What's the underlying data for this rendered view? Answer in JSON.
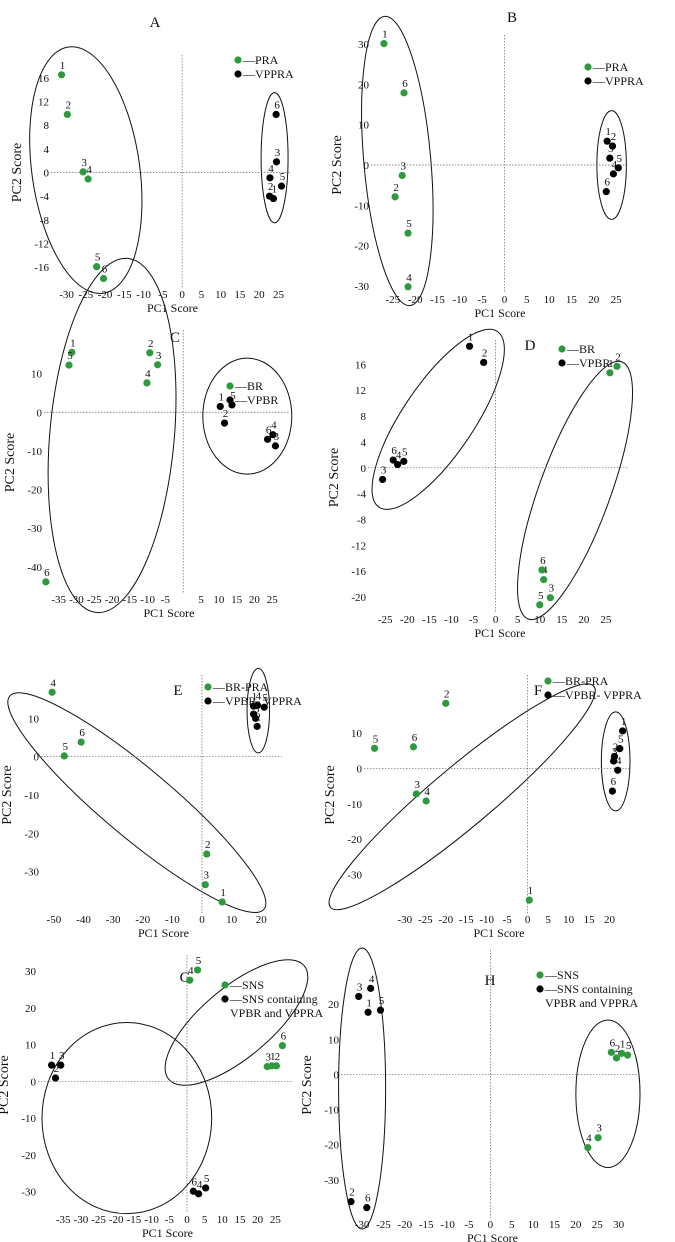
{
  "figure": {
    "series_colors": {
      "green": "#2e9a3e",
      "black": "#000000"
    }
  },
  "chart_data": [
    {
      "panel_label": "A",
      "type": "scatter",
      "xlabel": "PC1 Score",
      "ylabel": "PC2 Score",
      "xlim": [
        -33,
        28
      ],
      "ylim": [
        -19,
        19
      ],
      "xticks": [
        -30,
        -25,
        -20,
        -15,
        -10,
        -5,
        0,
        5,
        10,
        15,
        20,
        25
      ],
      "yticks": [
        -16,
        -12,
        -8,
        -4,
        0,
        4,
        8,
        12,
        16
      ],
      "legend": [
        "PRA",
        "VPPRA"
      ],
      "series": [
        {
          "name": "PRA",
          "color": "green",
          "points": [
            {
              "x": -31.3,
              "y": 16.5,
              "label": "1"
            },
            {
              "x": -29.8,
              "y": 9.8,
              "label": "2"
            },
            {
              "x": -25.7,
              "y": 0.1,
              "label": "3"
            },
            {
              "x": -24.4,
              "y": -1.1,
              "label": "4"
            },
            {
              "x": -22.2,
              "y": -15.9,
              "label": "5"
            },
            {
              "x": -20.4,
              "y": -17.9,
              "label": "6"
            }
          ]
        },
        {
          "name": "VPPRA",
          "color": "black",
          "points": [
            {
              "x": 23.7,
              "y": -4.4,
              "label": "1"
            },
            {
              "x": 22.7,
              "y": -4.0,
              "label": "2"
            },
            {
              "x": 24.5,
              "y": 1.8,
              "label": "3"
            },
            {
              "x": 22.8,
              "y": -0.9,
              "label": "4"
            },
            {
              "x": 25.8,
              "y": -2.3,
              "label": "5"
            },
            {
              "x": 24.4,
              "y": 9.8,
              "label": "6"
            }
          ]
        }
      ],
      "ellipses": [
        {
          "cx": -25,
          "cy": 0.4,
          "rx": 14,
          "ry": 21,
          "rot": -8
        },
        {
          "cx": 24,
          "cy": 2.5,
          "rx": 3.5,
          "ry": 11,
          "rot": 0
        }
      ]
    },
    {
      "panel_label": "B",
      "type": "scatter",
      "xlabel": "PC1 Score",
      "ylabel": "PC2 Score",
      "xlim": [
        -29,
        27
      ],
      "ylim": [
        -31,
        31
      ],
      "xticks": [
        -25,
        -20,
        -15,
        -10,
        -5,
        0,
        5,
        10,
        15,
        20,
        25
      ],
      "yticks": [
        -30,
        -20,
        -10,
        0,
        10,
        20,
        30
      ],
      "legend": [
        "PRA",
        "VPPRA"
      ],
      "series": [
        {
          "name": "PRA",
          "color": "green",
          "points": [
            {
              "x": -27.0,
              "y": 30.1,
              "label": "1"
            },
            {
              "x": -24.5,
              "y": -7.9,
              "label": "2"
            },
            {
              "x": -22.9,
              "y": -2.6,
              "label": "3"
            },
            {
              "x": -21.6,
              "y": -30.2,
              "label": "4"
            },
            {
              "x": -21.6,
              "y": -16.9,
              "label": "5"
            },
            {
              "x": -22.5,
              "y": 17.9,
              "label": "6"
            }
          ]
        },
        {
          "name": "VPPRA",
          "color": "black",
          "points": [
            {
              "x": 23.0,
              "y": 5.9,
              "label": "1"
            },
            {
              "x": 24.2,
              "y": 4.7,
              "label": "2"
            },
            {
              "x": 23.6,
              "y": 1.7,
              "label": "3"
            },
            {
              "x": 24.4,
              "y": -2.2,
              "label": "4"
            },
            {
              "x": 25.5,
              "y": -0.7,
              "label": "5"
            },
            {
              "x": 22.8,
              "y": -6.6,
              "label": "6"
            }
          ]
        }
      ],
      "ellipses": [
        {
          "cx": -24,
          "cy": 1,
          "rx": 7.5,
          "ry": 36,
          "rot": -5
        },
        {
          "cx": 24,
          "cy": 0,
          "rx": 3.3,
          "ry": 13.5,
          "rot": 0
        }
      ]
    },
    {
      "panel_label": "C",
      "type": "scatter",
      "xlabel": "PC1 Score",
      "ylabel": "PC2 Score",
      "xlim": [
        -38,
        30
      ],
      "ylim": [
        -46,
        20
      ],
      "xticks": [
        -35,
        -30,
        -25,
        -20,
        -15,
        -10,
        -5,
        5,
        10,
        15,
        20,
        25
      ],
      "yticks": [
        -40,
        -30,
        -20,
        -10,
        0,
        10
      ],
      "legend": [
        "BR",
        "VPBR"
      ],
      "series": [
        {
          "name": "BR",
          "color": "green",
          "points": [
            {
              "x": -31.3,
              "y": 15.5,
              "label": "1"
            },
            {
              "x": -9.4,
              "y": 15.4,
              "label": "2"
            },
            {
              "x": -7.2,
              "y": 12.3,
              "label": "3"
            },
            {
              "x": -10.2,
              "y": 7.6,
              "label": "4"
            },
            {
              "x": -32.1,
              "y": 12.2,
              "label": "5"
            },
            {
              "x": -38.6,
              "y": -43.9,
              "label": "6"
            }
          ]
        },
        {
          "name": "VPBR",
          "color": "black",
          "points": [
            {
              "x": 10.4,
              "y": 1.5,
              "label": "1"
            },
            {
              "x": 11.6,
              "y": -2.8,
              "label": "2"
            },
            {
              "x": 25.9,
              "y": -8.7,
              "label": "3"
            },
            {
              "x": 25.2,
              "y": -5.8,
              "label": "4"
            },
            {
              "x": 13.7,
              "y": 1.9,
              "label": "5"
            },
            {
              "x": 23.7,
              "y": -7.0,
              "label": "6"
            }
          ]
        }
      ],
      "ellipses": [
        {
          "cx": -20,
          "cy": -6,
          "rx": 17.5,
          "ry": 46,
          "rot": 5
        },
        {
          "cx": 18,
          "cy": -1,
          "rx": 12.5,
          "ry": 15,
          "rot": 0
        }
      ]
    },
    {
      "panel_label": "D",
      "type": "scatter",
      "xlabel": "PC1 Score",
      "ylabel": "PC2 Score",
      "xlim": [
        -28,
        30
      ],
      "ylim": [
        -22,
        19
      ],
      "xticks": [
        -25,
        -20,
        -15,
        -10,
        -5,
        0,
        5,
        10,
        15,
        20,
        25
      ],
      "yticks": [
        -20,
        -16,
        -12,
        -8,
        -4,
        0,
        4,
        8,
        12,
        16
      ],
      "legend": [
        "BR",
        "VPBR"
      ],
      "series": [
        {
          "name": "BR",
          "color": "green",
          "points": [
            {
              "x": 25.9,
              "y": 14.7,
              "label": "1"
            },
            {
              "x": 27.5,
              "y": 15.7,
              "label": "2"
            },
            {
              "x": 12.4,
              "y": -20.1,
              "label": "3"
            },
            {
              "x": 10.9,
              "y": -17.3,
              "label": "4"
            },
            {
              "x": 10.0,
              "y": -21.2,
              "label": "5"
            },
            {
              "x": 10.5,
              "y": -15.8,
              "label": "6"
            }
          ]
        },
        {
          "name": "VPBR",
          "color": "black",
          "points": [
            {
              "x": -5.9,
              "y": 18.8,
              "label": "1"
            },
            {
              "x": -2.7,
              "y": 16.3,
              "label": "2"
            },
            {
              "x": -25.6,
              "y": -1.8,
              "label": "3"
            },
            {
              "x": -22.2,
              "y": 0.5,
              "label": "4"
            },
            {
              "x": -20.8,
              "y": 1.0,
              "label": "5"
            },
            {
              "x": -23.2,
              "y": 1.2,
              "label": "6"
            }
          ]
        }
      ],
      "ellipses": [
        {
          "cx": -13,
          "cy": 7.5,
          "rx": 24,
          "ry": 5.5,
          "rot": -56
        },
        {
          "cx": 18,
          "cy": -3.5,
          "rx": 31,
          "ry": 5.5,
          "rot": -70
        }
      ]
    },
    {
      "panel_label": "E",
      "type": "scatter",
      "xlabel": "PC1 Score",
      "ylabel": "PC2 Score",
      "xlim": [
        -53,
        27
      ],
      "ylim": [
        -40,
        20
      ],
      "xticks": [
        -50,
        -40,
        -30,
        -20,
        -10,
        0,
        10,
        20
      ],
      "yticks": [
        -30,
        -20,
        -10,
        0,
        10
      ],
      "legend": [
        "BR-PRA",
        "VPBR- VPPRA"
      ],
      "series": [
        {
          "name": "BR-PRA",
          "color": "green",
          "points": [
            {
              "x": 6.8,
              "y": -37.9,
              "label": "1"
            },
            {
              "x": 1.6,
              "y": -25.4,
              "label": "2"
            },
            {
              "x": 1.1,
              "y": -33.4,
              "label": "3"
            },
            {
              "x": -50.6,
              "y": 16.8,
              "label": "4"
            },
            {
              "x": -46.5,
              "y": 0.2,
              "label": "5"
            },
            {
              "x": -40.8,
              "y": 3.8,
              "label": "6"
            }
          ]
        },
        {
          "name": "VPBR- VPPRA",
          "color": "black",
          "points": [
            {
              "x": 17.4,
              "y": 13.2,
              "label": "1"
            },
            {
              "x": 18.6,
              "y": 7.9,
              "label": "2"
            },
            {
              "x": 18.1,
              "y": 10.0,
              "label": "3"
            },
            {
              "x": 18.7,
              "y": 13.4,
              "label": "4"
            },
            {
              "x": 21.0,
              "y": 12.9,
              "label": "5"
            },
            {
              "x": 17.4,
              "y": 11.1,
              "label": "6"
            }
          ]
        }
      ],
      "ellipses": [
        {
          "cx": -22,
          "cy": -12,
          "rx": 56,
          "ry": 9,
          "rot": 40
        },
        {
          "cx": 19,
          "cy": 12,
          "rx": 3.8,
          "ry": 11,
          "rot": 0
        }
      ]
    },
    {
      "panel_label": "F",
      "type": "scatter",
      "xlabel": "PC1 Score",
      "ylabel": "PC2 Score",
      "xlim": [
        -39,
        25
      ],
      "ylim": [
        -40,
        25
      ],
      "xticks": [
        -30,
        -25,
        -20,
        -15,
        -10,
        -5,
        0,
        5,
        10,
        15,
        20
      ],
      "yticks": [
        -30,
        -20,
        -10,
        0,
        10
      ],
      "legend": [
        "BR-PRA",
        "VPBR- VPPRA"
      ],
      "series": [
        {
          "name": "BR-PRA",
          "color": "green",
          "points": [
            {
              "x": 0.4,
              "y": -37.2,
              "label": "1"
            },
            {
              "x": -20.0,
              "y": 18.4,
              "label": "2"
            },
            {
              "x": -27.2,
              "y": -7.2,
              "label": "3"
            },
            {
              "x": -24.8,
              "y": -9.2,
              "label": "4"
            },
            {
              "x": -37.4,
              "y": 5.7,
              "label": "5"
            },
            {
              "x": -27.9,
              "y": 6.1,
              "label": "6"
            }
          ]
        },
        {
          "name": "VPBR- VPPRA",
          "color": "black",
          "points": [
            {
              "x": 23.2,
              "y": 10.6,
              "label": "1"
            },
            {
              "x": 21.2,
              "y": 3.4,
              "label": "2"
            },
            {
              "x": 21.0,
              "y": 2.1,
              "label": "3"
            },
            {
              "x": 22.0,
              "y": -0.5,
              "label": "4"
            },
            {
              "x": 22.5,
              "y": 5.6,
              "label": "5"
            },
            {
              "x": 20.7,
              "y": -6.4,
              "label": "6"
            }
          ]
        }
      ],
      "ellipses": [
        {
          "cx": -16,
          "cy": -8,
          "rx": 42,
          "ry": 8.5,
          "rot": -40
        },
        {
          "cx": 21.5,
          "cy": 2,
          "rx": 3.5,
          "ry": 14,
          "rot": 0
        }
      ]
    },
    {
      "panel_label": "G",
      "type": "scatter",
      "xlabel": "PC1 Score",
      "ylabel": "PC2 Score",
      "xlim": [
        -41,
        30
      ],
      "ylim": [
        -35,
        33
      ],
      "xticks": [
        -35,
        -30,
        -25,
        -20,
        -15,
        -10,
        -5,
        0,
        5,
        10,
        15,
        20,
        25
      ],
      "yticks": [
        -30,
        -20,
        -10,
        0,
        10,
        20,
        30
      ],
      "legend": [
        "SNS",
        "SNS containing",
        "VPBR and VPPRA"
      ],
      "series": [
        {
          "name": "SNS",
          "color": "green",
          "points": [
            {
              "x": 24.0,
              "y": 4.2,
              "label": "1"
            },
            {
              "x": 25.3,
              "y": 4.2,
              "label": "2"
            },
            {
              "x": 22.7,
              "y": 4.0,
              "label": "3"
            },
            {
              "x": 0.8,
              "y": 27.5,
              "label": "4"
            },
            {
              "x": 3.0,
              "y": 30.3,
              "label": "5"
            },
            {
              "x": 27.0,
              "y": 9.7,
              "label": "6"
            }
          ]
        },
        {
          "name": "SNS containing VPBR and VPPRA",
          "color": "black",
          "points": [
            {
              "x": -38.3,
              "y": 4.4,
              "label": "1"
            },
            {
              "x": -37.2,
              "y": 0.9,
              "label": "2"
            },
            {
              "x": -35.7,
              "y": 4.4,
              "label": "3"
            },
            {
              "x": 3.3,
              "y": -30.6,
              "label": "4"
            },
            {
              "x": 5.3,
              "y": -29.0,
              "label": "5"
            },
            {
              "x": 1.8,
              "y": -29.9,
              "label": "6"
            }
          ]
        }
      ],
      "ellipses": [
        {
          "cx": -17,
          "cy": -10,
          "rx": 24,
          "ry": 26,
          "rot": 0
        },
        {
          "cx": 14,
          "cy": 16,
          "rx": 25,
          "ry": 9.5,
          "rot": -40
        }
      ]
    },
    {
      "panel_label": "H",
      "type": "scatter",
      "xlabel": "PC1 Score",
      "ylabel": "PC2 Score",
      "xlim": [
        -34,
        35
      ],
      "ylim": [
        -40,
        34
      ],
      "xticks": [
        -30,
        -25,
        -20,
        -15,
        -10,
        -5,
        0,
        5,
        10,
        15,
        20,
        25,
        30
      ],
      "yticks": [
        -30,
        -20,
        -10,
        0,
        10,
        20
      ],
      "legend": [
        "SNS",
        "SNS containing",
        "VPBR and VPPRA"
      ],
      "series": [
        {
          "name": "SNS",
          "color": "green",
          "points": [
            {
              "x": 30.7,
              "y": 6.0,
              "label": "1"
            },
            {
              "x": 29.5,
              "y": 4.7,
              "label": "2"
            },
            {
              "x": 25.2,
              "y": -18.0,
              "label": "3"
            },
            {
              "x": 22.8,
              "y": -20.8,
              "label": "4"
            },
            {
              "x": 32.1,
              "y": 5.5,
              "label": "5"
            },
            {
              "x": 28.3,
              "y": 6.3,
              "label": "6"
            }
          ]
        },
        {
          "name": "SNS containing VPBR and VPPRA",
          "color": "black",
          "points": [
            {
              "x": -28.6,
              "y": 17.7,
              "label": "1"
            },
            {
              "x": -32.6,
              "y": -36.2,
              "label": "2"
            },
            {
              "x": -30.8,
              "y": 22.2,
              "label": "3"
            },
            {
              "x": -28.0,
              "y": 24.5,
              "label": "4"
            },
            {
              "x": -25.7,
              "y": 18.3,
              "label": "5"
            },
            {
              "x": -28.9,
              "y": -37.9,
              "label": "6"
            }
          ]
        }
      ],
      "ellipses": [
        {
          "cx": -30,
          "cy": -4,
          "rx": 5.5,
          "ry": 40,
          "rot": 0
        },
        {
          "cx": 27.5,
          "cy": -5.5,
          "rx": 7.5,
          "ry": 21,
          "rot": 0
        }
      ]
    }
  ]
}
